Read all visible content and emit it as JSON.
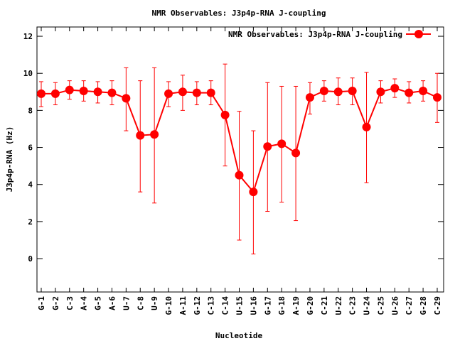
{
  "chart_data": {
    "type": "line",
    "title": "NMR Observables: J3p4p-RNA J-coupling",
    "xlabel": "Nucleotide",
    "ylabel": "J3p4p-RNA (Hz)",
    "ylim": [
      -1.8,
      12.5
    ],
    "yticks": [
      0,
      2,
      4,
      6,
      8,
      10,
      12
    ],
    "grid": false,
    "legend_position": "top-right",
    "categories": [
      "G-1",
      "G-2",
      "C-3",
      "A-4",
      "G-5",
      "A-6",
      "U-7",
      "C-8",
      "U-9",
      "G-10",
      "A-11",
      "G-12",
      "C-13",
      "C-14",
      "U-15",
      "U-16",
      "G-17",
      "G-18",
      "A-19",
      "G-20",
      "C-21",
      "U-22",
      "C-23",
      "U-24",
      "C-25",
      "U-26",
      "C-27",
      "G-28",
      "C-29"
    ],
    "series": [
      {
        "name": "NMR Observables: J3p4p-RNA J-coupling",
        "color": "#ff0000",
        "values": [
          8.9,
          8.9,
          9.1,
          9.05,
          9.0,
          8.95,
          8.65,
          6.65,
          6.7,
          8.9,
          9.0,
          8.95,
          8.95,
          7.75,
          4.5,
          3.6,
          6.05,
          6.2,
          5.7,
          8.7,
          9.05,
          9.0,
          9.05,
          7.1,
          9.0,
          9.2,
          8.95,
          9.05,
          8.7
        ],
        "err_low": [
          8.2,
          8.3,
          8.6,
          8.5,
          8.4,
          8.3,
          6.9,
          3.6,
          3.0,
          8.2,
          8.0,
          8.3,
          8.3,
          5.0,
          1.0,
          0.25,
          2.55,
          3.05,
          2.05,
          7.8,
          8.5,
          8.3,
          8.3,
          4.1,
          8.4,
          8.7,
          8.4,
          8.5,
          7.35
        ],
        "err_high": [
          9.55,
          9.5,
          9.6,
          9.6,
          9.55,
          9.6,
          10.3,
          9.6,
          10.3,
          9.55,
          9.9,
          9.55,
          9.6,
          10.5,
          7.95,
          6.9,
          9.5,
          9.3,
          9.3,
          9.5,
          9.6,
          9.75,
          9.75,
          10.05,
          9.6,
          9.7,
          9.55,
          9.6,
          10.0
        ]
      }
    ]
  }
}
